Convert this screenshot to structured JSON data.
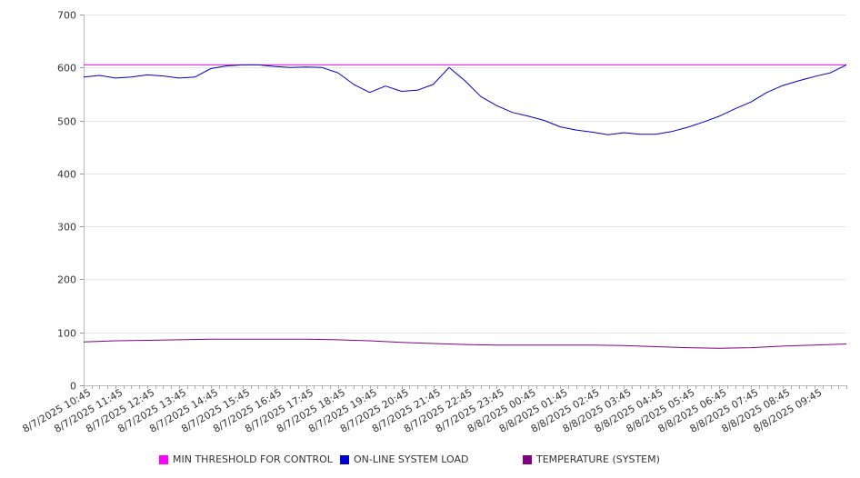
{
  "chart_data": {
    "type": "line",
    "ylim": [
      0,
      700
    ],
    "y_ticks": [
      "0",
      "100",
      "200",
      "300",
      "400",
      "500",
      "600",
      "700"
    ],
    "x_tick_labels": [
      "8/7/2025 10:45",
      "8/7/2025 11:45",
      "8/7/2025 12:45",
      "8/7/2025 13:45",
      "8/7/2025 14:45",
      "8/7/2025 15:45",
      "8/7/2025 16:45",
      "8/7/2025 17:45",
      "8/7/2025 18:45",
      "8/7/2025 19:45",
      "8/7/2025 20:45",
      "8/7/2025 21:45",
      "8/7/2025 22:45",
      "8/7/2025 23:45",
      "8/8/2025 00:45",
      "8/8/2025 01:45",
      "8/8/2025 02:45",
      "8/8/2025 03:45",
      "8/8/2025 04:45",
      "8/8/2025 05:45",
      "8/8/2025 06:45",
      "8/8/2025 07:45",
      "8/8/2025 08:45",
      "8/8/2025 09:45"
    ],
    "grid": "horizontal",
    "legend_position": "bottom",
    "series": [
      {
        "name": "MIN THRESHOLD FOR CONTROL",
        "color": "#ff00ff",
        "x": [
          "8/7/2025 10:30",
          "8/8/2025 10:30"
        ],
        "values": [
          605,
          605
        ]
      },
      {
        "name": "ON-LINE SYSTEM LOAD",
        "color": "#0000cc",
        "x": [
          "8/7/2025 10:30",
          "8/7/2025 11:00",
          "8/7/2025 11:30",
          "8/7/2025 12:00",
          "8/7/2025 12:30",
          "8/7/2025 13:00",
          "8/7/2025 13:30",
          "8/7/2025 14:00",
          "8/7/2025 14:30",
          "8/7/2025 15:00",
          "8/7/2025 15:30",
          "8/7/2025 16:00",
          "8/7/2025 16:30",
          "8/7/2025 17:00",
          "8/7/2025 17:30",
          "8/7/2025 18:00",
          "8/7/2025 18:30",
          "8/7/2025 19:00",
          "8/7/2025 19:30",
          "8/7/2025 20:00",
          "8/7/2025 20:30",
          "8/7/2025 21:00",
          "8/7/2025 21:30",
          "8/7/2025 22:00",
          "8/7/2025 22:30",
          "8/7/2025 23:00",
          "8/7/2025 23:30",
          "8/8/2025 00:00",
          "8/8/2025 00:30",
          "8/8/2025 01:00",
          "8/8/2025 01:30",
          "8/8/2025 02:00",
          "8/8/2025 02:30",
          "8/8/2025 03:00",
          "8/8/2025 03:30",
          "8/8/2025 04:00",
          "8/8/2025 04:30",
          "8/8/2025 05:00",
          "8/8/2025 05:30",
          "8/8/2025 06:00",
          "8/8/2025 06:30",
          "8/8/2025 07:00",
          "8/8/2025 07:30",
          "8/8/2025 08:00",
          "8/8/2025 08:30",
          "8/8/2025 09:00",
          "8/8/2025 09:30",
          "8/8/2025 10:00",
          "8/8/2025 10:30"
        ],
        "values": [
          582,
          585,
          580,
          582,
          586,
          584,
          580,
          582,
          598,
          603,
          605,
          605,
          602,
          600,
          601,
          600,
          590,
          568,
          553,
          565,
          555,
          557,
          568,
          600,
          575,
          545,
          528,
          515,
          508,
          500,
          488,
          482,
          478,
          473,
          477,
          474,
          474,
          479,
          487,
          497,
          508,
          522,
          535,
          553,
          566,
          575,
          583,
          590,
          605
        ]
      },
      {
        "name": "TEMPERATURE (SYSTEM)",
        "color": "#800080",
        "x": [
          "8/7/2025 10:30",
          "8/7/2025 11:30",
          "8/7/2025 12:30",
          "8/7/2025 13:30",
          "8/7/2025 14:30",
          "8/7/2025 15:30",
          "8/7/2025 16:30",
          "8/7/2025 17:30",
          "8/7/2025 18:30",
          "8/7/2025 19:30",
          "8/7/2025 20:30",
          "8/7/2025 21:30",
          "8/7/2025 22:30",
          "8/7/2025 23:30",
          "8/8/2025 00:30",
          "8/8/2025 01:30",
          "8/8/2025 02:30",
          "8/8/2025 03:30",
          "8/8/2025 04:30",
          "8/8/2025 05:30",
          "8/8/2025 06:30",
          "8/8/2025 07:30",
          "8/8/2025 08:30",
          "8/8/2025 09:30",
          "8/8/2025 10:30"
        ],
        "values": [
          82,
          84,
          85,
          86,
          87,
          87,
          87,
          87,
          86,
          84,
          81,
          79,
          77,
          76,
          76,
          76,
          76,
          75,
          73,
          71,
          70,
          71,
          74,
          76,
          78
        ]
      }
    ]
  }
}
